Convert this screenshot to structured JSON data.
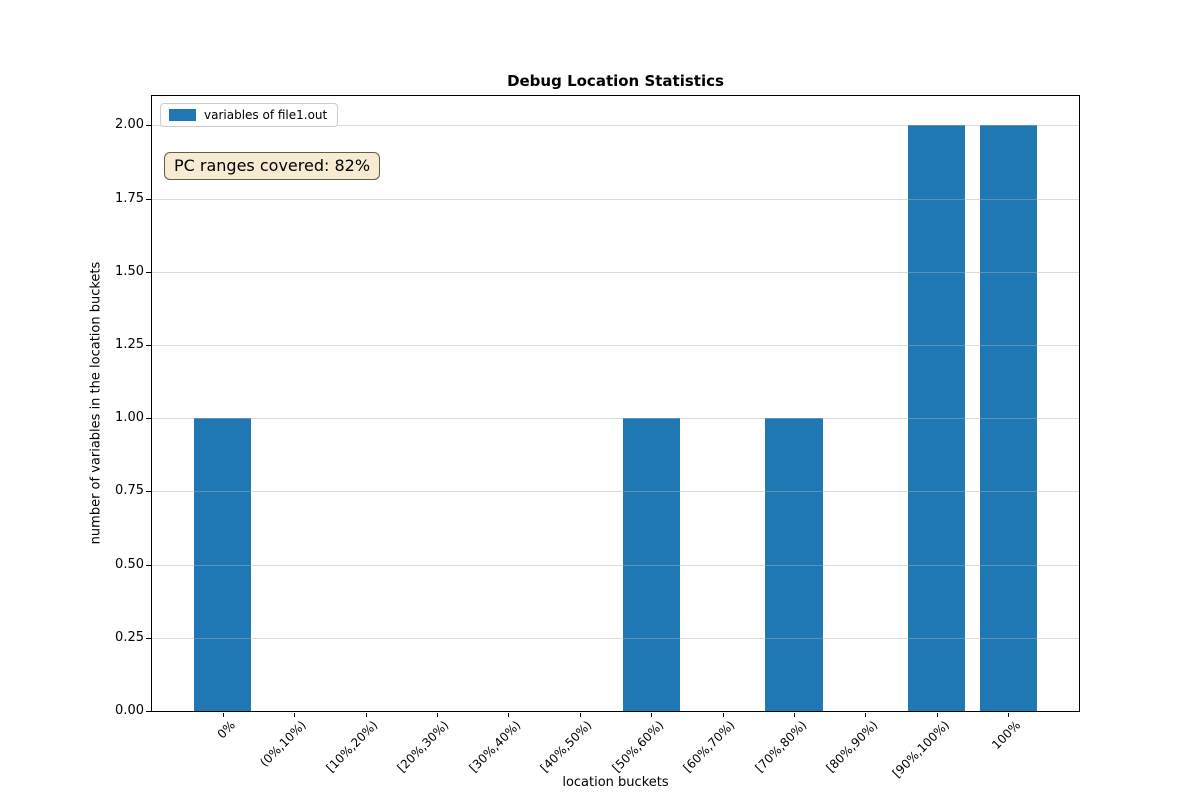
{
  "figure": {
    "background": "#ffffff"
  },
  "chart_data": {
    "type": "bar",
    "title": "Debug Location Statistics",
    "xlabel": "location buckets",
    "ylabel": "number of variables in the location buckets",
    "categories": [
      "0%",
      "(0%,10%)",
      "[10%,20%)",
      "[20%,30%)",
      "[30%,40%)",
      "[40%,50%)",
      "[50%,60%)",
      "[60%,70%)",
      "[70%,80%)",
      "[80%,90%)",
      "[90%,100%)",
      "100%"
    ],
    "values": [
      1,
      0,
      0,
      0,
      0,
      0,
      1,
      0,
      1,
      0,
      2,
      2
    ],
    "series": [
      {
        "name": "variables of file1.out",
        "values": [
          1,
          0,
          0,
          0,
          0,
          0,
          1,
          0,
          1,
          0,
          2,
          2
        ]
      }
    ],
    "bar_color": "#1f77b4",
    "ylim": [
      0,
      2.1
    ],
    "yticks": [
      "0.00",
      "0.25",
      "0.50",
      "0.75",
      "1.00",
      "1.25",
      "1.50",
      "1.75",
      "2.00"
    ],
    "grid": "horizontal",
    "legend": {
      "label": "variables of file1.out",
      "swatch_color": "#1f77b4",
      "position": "upper left"
    },
    "annotation": {
      "text": "PC ranges covered: 82%",
      "bg_color": "#f7ebd1",
      "border_color": "#5f5c52"
    }
  }
}
